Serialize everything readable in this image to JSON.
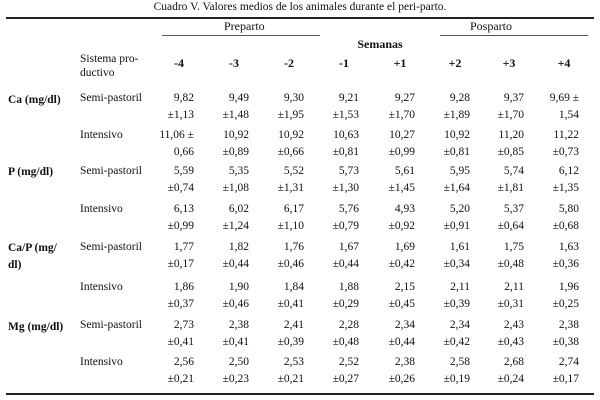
{
  "caption": "Cuadro V. Valores medios de los animales durante el peri-parto.",
  "header": {
    "preparto": "Preparto",
    "posparto": "Posparto",
    "semanas": "Semanas",
    "sistema_line1": "Sistema pro-",
    "sistema_line2": "ductivo",
    "weeks": [
      "-4",
      "-3",
      "-2",
      "-1",
      "+1",
      "+2",
      "+3",
      "+4"
    ]
  },
  "groups": [
    {
      "label_line1": "Ca (mg/dl)",
      "label_line2": "",
      "rows": [
        {
          "system": "Semi-pastoril",
          "cells": [
            [
              "9,82",
              "±1,13"
            ],
            [
              "9,49",
              "±1,48"
            ],
            [
              "9,30",
              "±1,95"
            ],
            [
              "9,21",
              "±1,53"
            ],
            [
              "9,27",
              "±1,70"
            ],
            [
              "9,28",
              "±1,89"
            ],
            [
              "9,37",
              "±1,70"
            ],
            [
              "9,69 ±",
              "1,54"
            ]
          ]
        },
        {
          "system": "Intensivo",
          "cells": [
            [
              "11,06 ±",
              "0,66"
            ],
            [
              "10,92",
              "±0,89"
            ],
            [
              "10,92",
              "±0,66"
            ],
            [
              "10,63",
              "±0,81"
            ],
            [
              "10,27",
              "±0,99"
            ],
            [
              "10,92",
              "±0,81"
            ],
            [
              "11,20",
              "±0,85"
            ],
            [
              "11,22",
              "±0,73"
            ]
          ]
        }
      ]
    },
    {
      "label_line1": "P (mg/dl)",
      "label_line2": "",
      "rows": [
        {
          "system": "Semi-pastoril",
          "cells": [
            [
              "5,59",
              "±0,74"
            ],
            [
              "5,35",
              "±1,08"
            ],
            [
              "5,52",
              "±1,31"
            ],
            [
              "5,73",
              "±1,30"
            ],
            [
              "5,61",
              "±1,45"
            ],
            [
              "5,95",
              "±1,64"
            ],
            [
              "5,74",
              "±1,81"
            ],
            [
              "6,12",
              "±1,35"
            ]
          ]
        },
        {
          "system": "Intensivo",
          "cells": [
            [
              "6,13",
              "±0,99"
            ],
            [
              "6,02",
              "±1,24"
            ],
            [
              "6,17",
              "±1,10"
            ],
            [
              "5,76",
              "±0,79"
            ],
            [
              "4,93",
              "±0,92"
            ],
            [
              "5,20",
              "±0,91"
            ],
            [
              "5,37",
              "±0,64"
            ],
            [
              "5,80",
              "±0,68"
            ]
          ]
        }
      ]
    },
    {
      "label_line1": "Ca/P (mg/",
      "label_line2": "dl)",
      "rows": [
        {
          "system": "Semi-pastoril",
          "cells": [
            [
              "1,77",
              "±0,17"
            ],
            [
              "1,82",
              "±0,44"
            ],
            [
              "1,76",
              "±0,46"
            ],
            [
              "1,67",
              "±0,44"
            ],
            [
              "1,69",
              "±0,42"
            ],
            [
              "1,61",
              "±0,34"
            ],
            [
              "1,75",
              "±0,48"
            ],
            [
              "1,63",
              "±0,36"
            ]
          ]
        },
        {
          "system": "Intensivo",
          "cells": [
            [
              "1,86",
              "±0,37"
            ],
            [
              "1,90",
              "±0,46"
            ],
            [
              "1,84",
              "±0,41"
            ],
            [
              "1,88",
              "±0,29"
            ],
            [
              "2,15",
              "±0,45"
            ],
            [
              "2,11",
              "±0,39"
            ],
            [
              "2,11",
              "±0,31"
            ],
            [
              "1,96",
              "±0,25"
            ]
          ]
        }
      ]
    },
    {
      "label_line1": "Mg (mg/dl)",
      "label_line2": "",
      "rows": [
        {
          "system": "Semi-pastoril",
          "cells": [
            [
              "2,73",
              "±0,41"
            ],
            [
              "2,38",
              "±0,41"
            ],
            [
              "2,41",
              "±0,39"
            ],
            [
              "2,28",
              "±0,48"
            ],
            [
              "2,34",
              "±0,44"
            ],
            [
              "2,34",
              "±0,42"
            ],
            [
              "2,43",
              "±0,43"
            ],
            [
              "2,38",
              "±0,38"
            ]
          ]
        },
        {
          "system": "Intensivo",
          "cells": [
            [
              "2,56",
              "±0,21"
            ],
            [
              "2,50",
              "±0,23"
            ],
            [
              "2,53",
              "±0,21"
            ],
            [
              "2,52",
              "±0,27"
            ],
            [
              "2,38",
              "±0,26"
            ],
            [
              "2,58",
              "±0,19"
            ],
            [
              "2,68",
              "±0,24"
            ],
            [
              "2,74",
              "±0,17"
            ]
          ]
        }
      ]
    }
  ]
}
